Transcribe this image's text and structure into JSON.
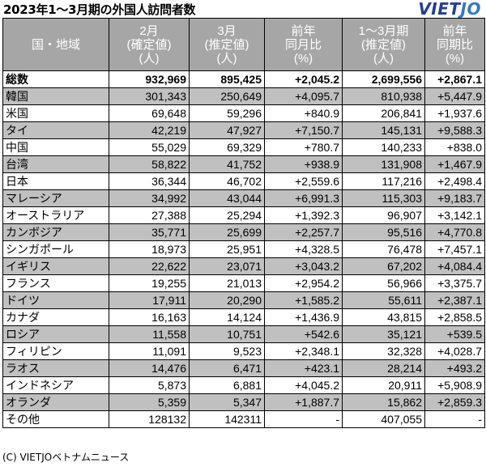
{
  "title": "2023年1～3月期の外国人訪問者数",
  "logo": {
    "part1": "VIET",
    "part2": "JO"
  },
  "columns": [
    {
      "line1": "国・地域",
      "line2": "",
      "line3": ""
    },
    {
      "line1": "2月",
      "line2": "(確定値)",
      "line3": "(人)"
    },
    {
      "line1": "3月",
      "line2": "(推定値)",
      "line3": "(人)"
    },
    {
      "line1": "前年",
      "line2": "同月比",
      "line3": "(%)"
    },
    {
      "line1": "1～3月期",
      "line2": "(推定値)",
      "line3": "(人)"
    },
    {
      "line1": "前年",
      "line2": "同期比",
      "line3": "(%)"
    }
  ],
  "rows": [
    {
      "name": "総数",
      "feb": "932,969",
      "mar": "895,425",
      "yoy_month": "+2,045.2",
      "q1": "2,699,556",
      "yoy_q": "+2,867.1"
    },
    {
      "name": "韓国",
      "feb": "301,343",
      "mar": "250,649",
      "yoy_month": "+4,095.7",
      "q1": "810,938",
      "yoy_q": "+5,447.9"
    },
    {
      "name": "米国",
      "feb": "69,648",
      "mar": "59,296",
      "yoy_month": "+840.9",
      "q1": "206,841",
      "yoy_q": "+1,937.6"
    },
    {
      "name": "タイ",
      "feb": "42,219",
      "mar": "47,927",
      "yoy_month": "+7,150.7",
      "q1": "145,131",
      "yoy_q": "+9,588.3"
    },
    {
      "name": "中国",
      "feb": "55,029",
      "mar": "69,329",
      "yoy_month": "+780.7",
      "q1": "140,233",
      "yoy_q": "+838.0"
    },
    {
      "name": "台湾",
      "feb": "58,822",
      "mar": "41,752",
      "yoy_month": "+938.9",
      "q1": "131,908",
      "yoy_q": "+1,467.9"
    },
    {
      "name": "日本",
      "feb": "36,344",
      "mar": "46,702",
      "yoy_month": "+2,559.6",
      "q1": "117,216",
      "yoy_q": "+2,498.4"
    },
    {
      "name": "マレーシア",
      "feb": "34,992",
      "mar": "43,044",
      "yoy_month": "+6,991.3",
      "q1": "115,303",
      "yoy_q": "+9,183.7"
    },
    {
      "name": "オーストラリア",
      "feb": "27,388",
      "mar": "25,294",
      "yoy_month": "+1,392.3",
      "q1": "96,907",
      "yoy_q": "+3,142.1"
    },
    {
      "name": "カンボジア",
      "feb": "35,771",
      "mar": "25,699",
      "yoy_month": "+2,257.7",
      "q1": "95,516",
      "yoy_q": "+4,770.8"
    },
    {
      "name": "シンガポール",
      "feb": "18,973",
      "mar": "25,951",
      "yoy_month": "+4,328.5",
      "q1": "76,478",
      "yoy_q": "+7,457.1"
    },
    {
      "name": "イギリス",
      "feb": "22,622",
      "mar": "23,071",
      "yoy_month": "+3,043.2",
      "q1": "67,202",
      "yoy_q": "+4,084.4"
    },
    {
      "name": "フランス",
      "feb": "19,255",
      "mar": "21,013",
      "yoy_month": "+2,954.2",
      "q1": "56,966",
      "yoy_q": "+3,375.7"
    },
    {
      "name": "ドイツ",
      "feb": "17,911",
      "mar": "20,290",
      "yoy_month": "+1,585.2",
      "q1": "55,611",
      "yoy_q": "+2,387.1"
    },
    {
      "name": "カナダ",
      "feb": "16,163",
      "mar": "14,124",
      "yoy_month": "+1,436.9",
      "q1": "43,815",
      "yoy_q": "+2,858.5"
    },
    {
      "name": "ロシア",
      "feb": "11,558",
      "mar": "10,751",
      "yoy_month": "+542.6",
      "q1": "35,121",
      "yoy_q": "+539.5"
    },
    {
      "name": "フィリピン",
      "feb": "11,091",
      "mar": "9,523",
      "yoy_month": "+2,348.1",
      "q1": "32,328",
      "yoy_q": "+4,028.7"
    },
    {
      "name": "ラオス",
      "feb": "14,476",
      "mar": "6,471",
      "yoy_month": "+423.1",
      "q1": "28,214",
      "yoy_q": "+493.2"
    },
    {
      "name": "インドネシア",
      "feb": "5,873",
      "mar": "6,881",
      "yoy_month": "+4,045.2",
      "q1": "20,911",
      "yoy_q": "+5,908.9"
    },
    {
      "name": "オランダ",
      "feb": "5,359",
      "mar": "5,347",
      "yoy_month": "+1,887.7",
      "q1": "15,862",
      "yoy_q": "+2,859.3"
    },
    {
      "name": "その他",
      "feb": "128132",
      "mar": "142311",
      "yoy_month": "-",
      "q1": "407,055",
      "yoy_q": "-"
    }
  ],
  "credit": "(C) VIETJOベトナムニュース"
}
